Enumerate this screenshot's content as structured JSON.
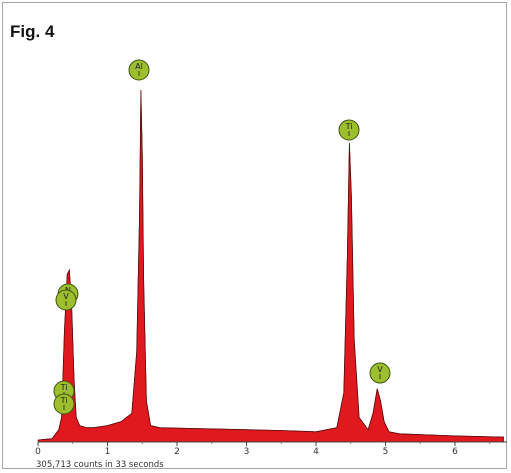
{
  "figure": {
    "label": "Fig. 4"
  },
  "chart_data": {
    "type": "area",
    "title": "",
    "xlabel": "",
    "ylabel": "",
    "xlim": [
      0,
      6.7
    ],
    "ylim": [
      0,
      100
    ],
    "x_ticks": [
      "0",
      "1",
      "2",
      "3",
      "4",
      "5",
      "6"
    ],
    "series": [
      {
        "color": "#e0191f",
        "x": [
          0.0,
          0.2,
          0.3,
          0.34,
          0.38,
          0.42,
          0.45,
          0.48,
          0.52,
          0.55,
          0.6,
          0.7,
          0.8,
          1.0,
          1.2,
          1.35,
          1.42,
          1.46,
          1.48,
          1.5,
          1.52,
          1.56,
          1.62,
          1.75,
          2.0,
          2.5,
          3.0,
          3.5,
          4.0,
          4.3,
          4.4,
          4.45,
          4.48,
          4.51,
          4.55,
          4.62,
          4.75,
          4.82,
          4.88,
          4.93,
          4.98,
          5.05,
          5.2,
          5.5,
          6.0,
          6.7
        ],
        "y": [
          0.5,
          0.8,
          3.0,
          6.0,
          27.0,
          41.0,
          42.0,
          35.0,
          15.0,
          6.0,
          4.0,
          3.5,
          3.5,
          4.0,
          5.0,
          7.0,
          22.0,
          55.0,
          86.0,
          70.0,
          40.0,
          10.0,
          4.0,
          3.5,
          3.4,
          3.2,
          3.0,
          2.8,
          2.5,
          3.5,
          12.0,
          45.0,
          73.0,
          60.0,
          25.0,
          6.0,
          3.0,
          7.0,
          13.0,
          10.0,
          5.0,
          2.5,
          2.0,
          1.8,
          1.5,
          1.2
        ]
      }
    ],
    "peak_labels": [
      {
        "element": "Al",
        "x": 1.48,
        "y": 86
      },
      {
        "element": "Ti",
        "x": 4.48,
        "y": 73
      },
      {
        "element": "V",
        "x": 4.9,
        "y": 13
      },
      {
        "element": "N",
        "x": 0.42,
        "y": 43
      },
      {
        "element": "V",
        "x": 0.42,
        "y": 43
      },
      {
        "element": "Ti",
        "x": 0.4,
        "y": 12
      },
      {
        "element": "Ti",
        "x": 0.38,
        "y": 8
      }
    ],
    "annotation": "305,713 counts in 33 seconds"
  }
}
